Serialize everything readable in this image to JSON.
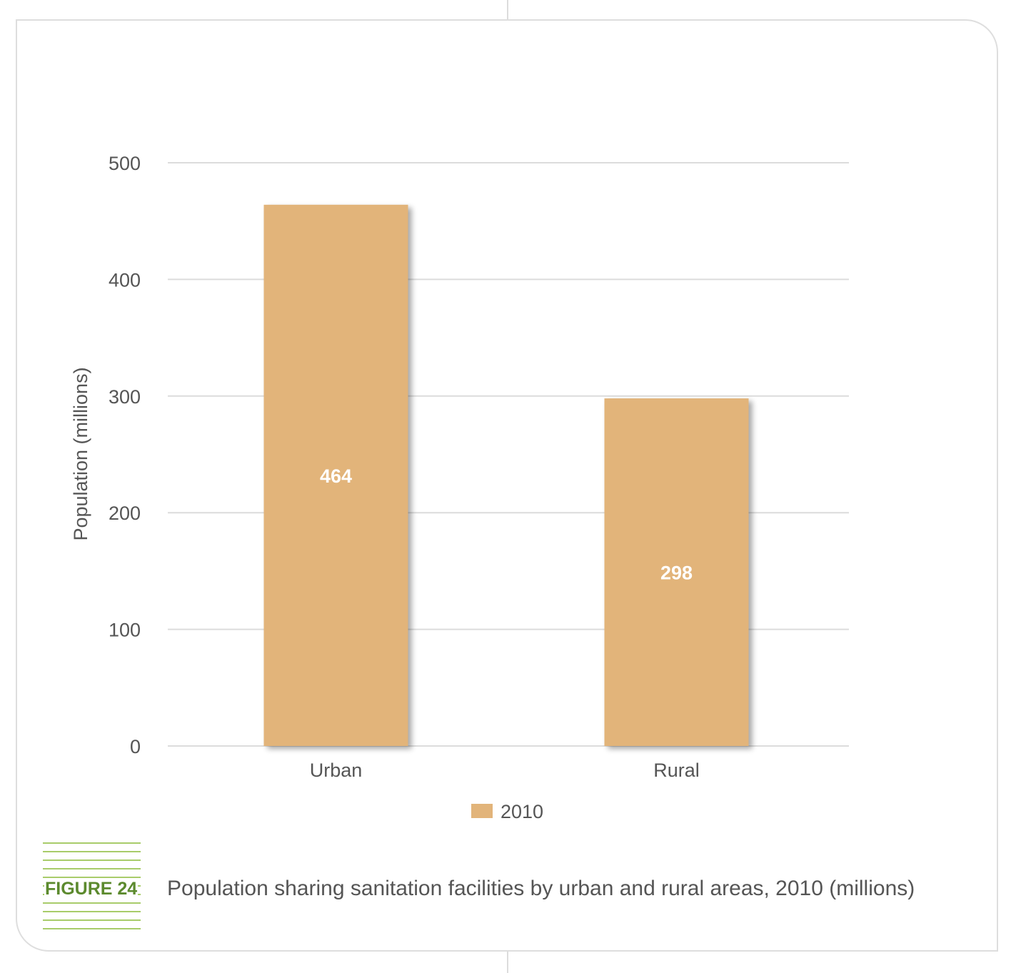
{
  "figure": {
    "tag": "FIGURE 24",
    "caption": "Population sharing sanitation facilities by urban and rural areas, 2010 (millions)"
  },
  "colors": {
    "bar": "#e2b47a",
    "grid": "#dcdcdc",
    "text": "#555555",
    "tag_green": "#a8cc6a",
    "tag_text": "#5c8a2e"
  },
  "chart_data": {
    "type": "bar",
    "categories": [
      "Urban",
      "Rural"
    ],
    "series": [
      {
        "name": "2010",
        "values": [
          464,
          298
        ]
      }
    ],
    "data_labels": [
      "464",
      "298"
    ],
    "title": "",
    "xlabel": "",
    "ylabel": "Population (millions)",
    "ylim": [
      0,
      500
    ],
    "yticks": [
      0,
      100,
      200,
      300,
      400,
      500
    ],
    "grid": true,
    "legend": "bottom-center"
  }
}
